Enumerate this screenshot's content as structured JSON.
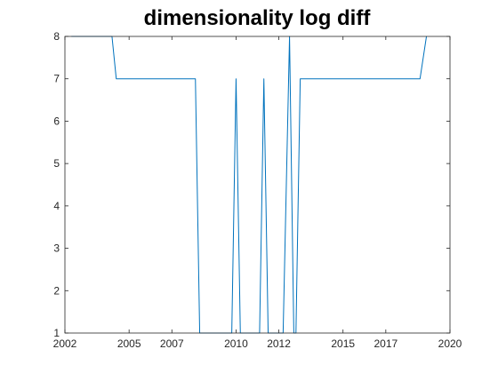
{
  "chart_data": {
    "type": "line",
    "title": "dimensionality log diff",
    "xlabel": "",
    "ylabel": "",
    "xlim": [
      2002,
      2020
    ],
    "ylim": [
      1,
      8
    ],
    "xticks": [
      2002,
      2005,
      2007,
      2010,
      2012,
      2015,
      2017,
      2020
    ],
    "xtick_labels": [
      "2002",
      "2005",
      "2007",
      "2010",
      "2012",
      "2015",
      "2017",
      "2020"
    ],
    "yticks": [
      1,
      2,
      3,
      4,
      5,
      6,
      7,
      8
    ],
    "ytick_labels": [
      "1",
      "2",
      "3",
      "4",
      "5",
      "6",
      "7",
      "8"
    ],
    "grid": false,
    "series": [
      {
        "color": "#0072bd",
        "x": [
          2002.3,
          2003.2,
          2004.2,
          2004.4,
          2008.1,
          2008.3,
          2009.8,
          2010.0,
          2010.2,
          2010.5,
          2011.1,
          2011.3,
          2011.5,
          2012.0,
          2012.2,
          2012.5,
          2012.7,
          2012.8,
          2013.0,
          2018.3,
          2018.6,
          2018.9
        ],
        "y": [
          8,
          8,
          8,
          7,
          7,
          1,
          1,
          7,
          1,
          1,
          1,
          7,
          1,
          1,
          1,
          8,
          1,
          1,
          7,
          7,
          7,
          8
        ]
      }
    ]
  }
}
